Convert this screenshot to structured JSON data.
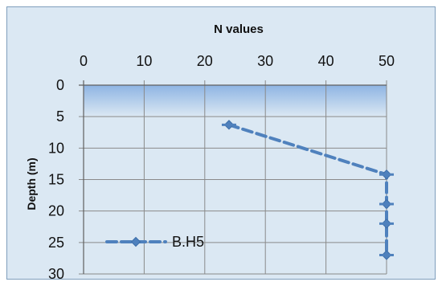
{
  "chart_data": {
    "type": "line",
    "title": "N values",
    "xlabel": "",
    "ylabel": "Depth (m)",
    "xlim": [
      0,
      50
    ],
    "ylim": [
      0,
      30
    ],
    "x_ticks": [
      0,
      10,
      20,
      30,
      40,
      50
    ],
    "y_ticks": [
      0,
      5,
      10,
      15,
      20,
      25,
      30
    ],
    "x_axis_position": "top",
    "y_axis_inverted": true,
    "grid": "vertical-and-horizontal",
    "legend_position": "bottom-left",
    "series": [
      {
        "name": "B.H5",
        "x": [
          24,
          50,
          50,
          50,
          50
        ],
        "y": [
          6.3,
          14.2,
          18.9,
          22,
          27
        ],
        "color": "#4f81bd",
        "line_style": "dashed",
        "marker": "diamond"
      }
    ],
    "shaded_band": {
      "y_range": [
        0,
        5
      ],
      "color_top": "#8eb4e3",
      "color_bottom": "#dbe8f3"
    }
  }
}
